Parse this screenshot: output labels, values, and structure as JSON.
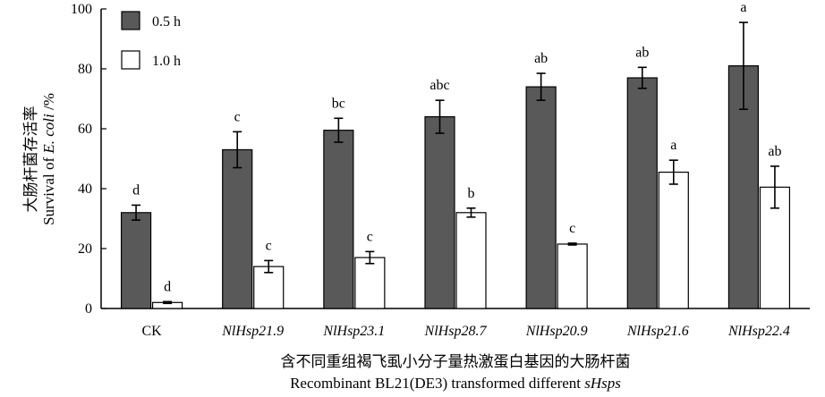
{
  "chart_data": {
    "type": "bar",
    "categories": [
      "CK",
      "NlHsp21.9",
      "NlHsp23.1",
      "NlHsp28.7",
      "NlHsp20.9",
      "NlHsp21.6",
      "NlHsp22.4"
    ],
    "series": [
      {
        "name": "0.5 h",
        "color": "#595959",
        "values": [
          32,
          53,
          59.5,
          64,
          74,
          77,
          81
        ],
        "errors": [
          2.5,
          6,
          4,
          5.5,
          4.5,
          3.5,
          14.5
        ],
        "labels": [
          "d",
          "c",
          "bc",
          "abc",
          "ab",
          "ab",
          "a"
        ]
      },
      {
        "name": "1.0 h",
        "color": "#ffffff",
        "values": [
          2,
          14,
          17,
          32,
          21.5,
          45.5,
          40.5
        ],
        "errors": [
          0.3,
          2,
          2,
          1.5,
          0.3,
          4,
          7
        ],
        "labels": [
          "d",
          "c",
          "c",
          "b",
          "c",
          "a",
          "ab"
        ]
      }
    ],
    "ylim": [
      0,
      100
    ],
    "yticks": [
      0,
      20,
      40,
      60,
      80,
      100
    ],
    "ylabel": {
      "cn": "大肠杆菌存活率",
      "en_prefix": "Survival of ",
      "en_italic": "E. coli",
      "en_suffix": " /%"
    },
    "xlabel": {
      "cn": "含不同重组褐飞虱小分子量热激蛋白基因的大肠杆菌",
      "en_prefix": "Recombinant BL21(DE3) transformed different ",
      "en_italic": "sHsps"
    },
    "legend": "top-left",
    "grid": false
  }
}
